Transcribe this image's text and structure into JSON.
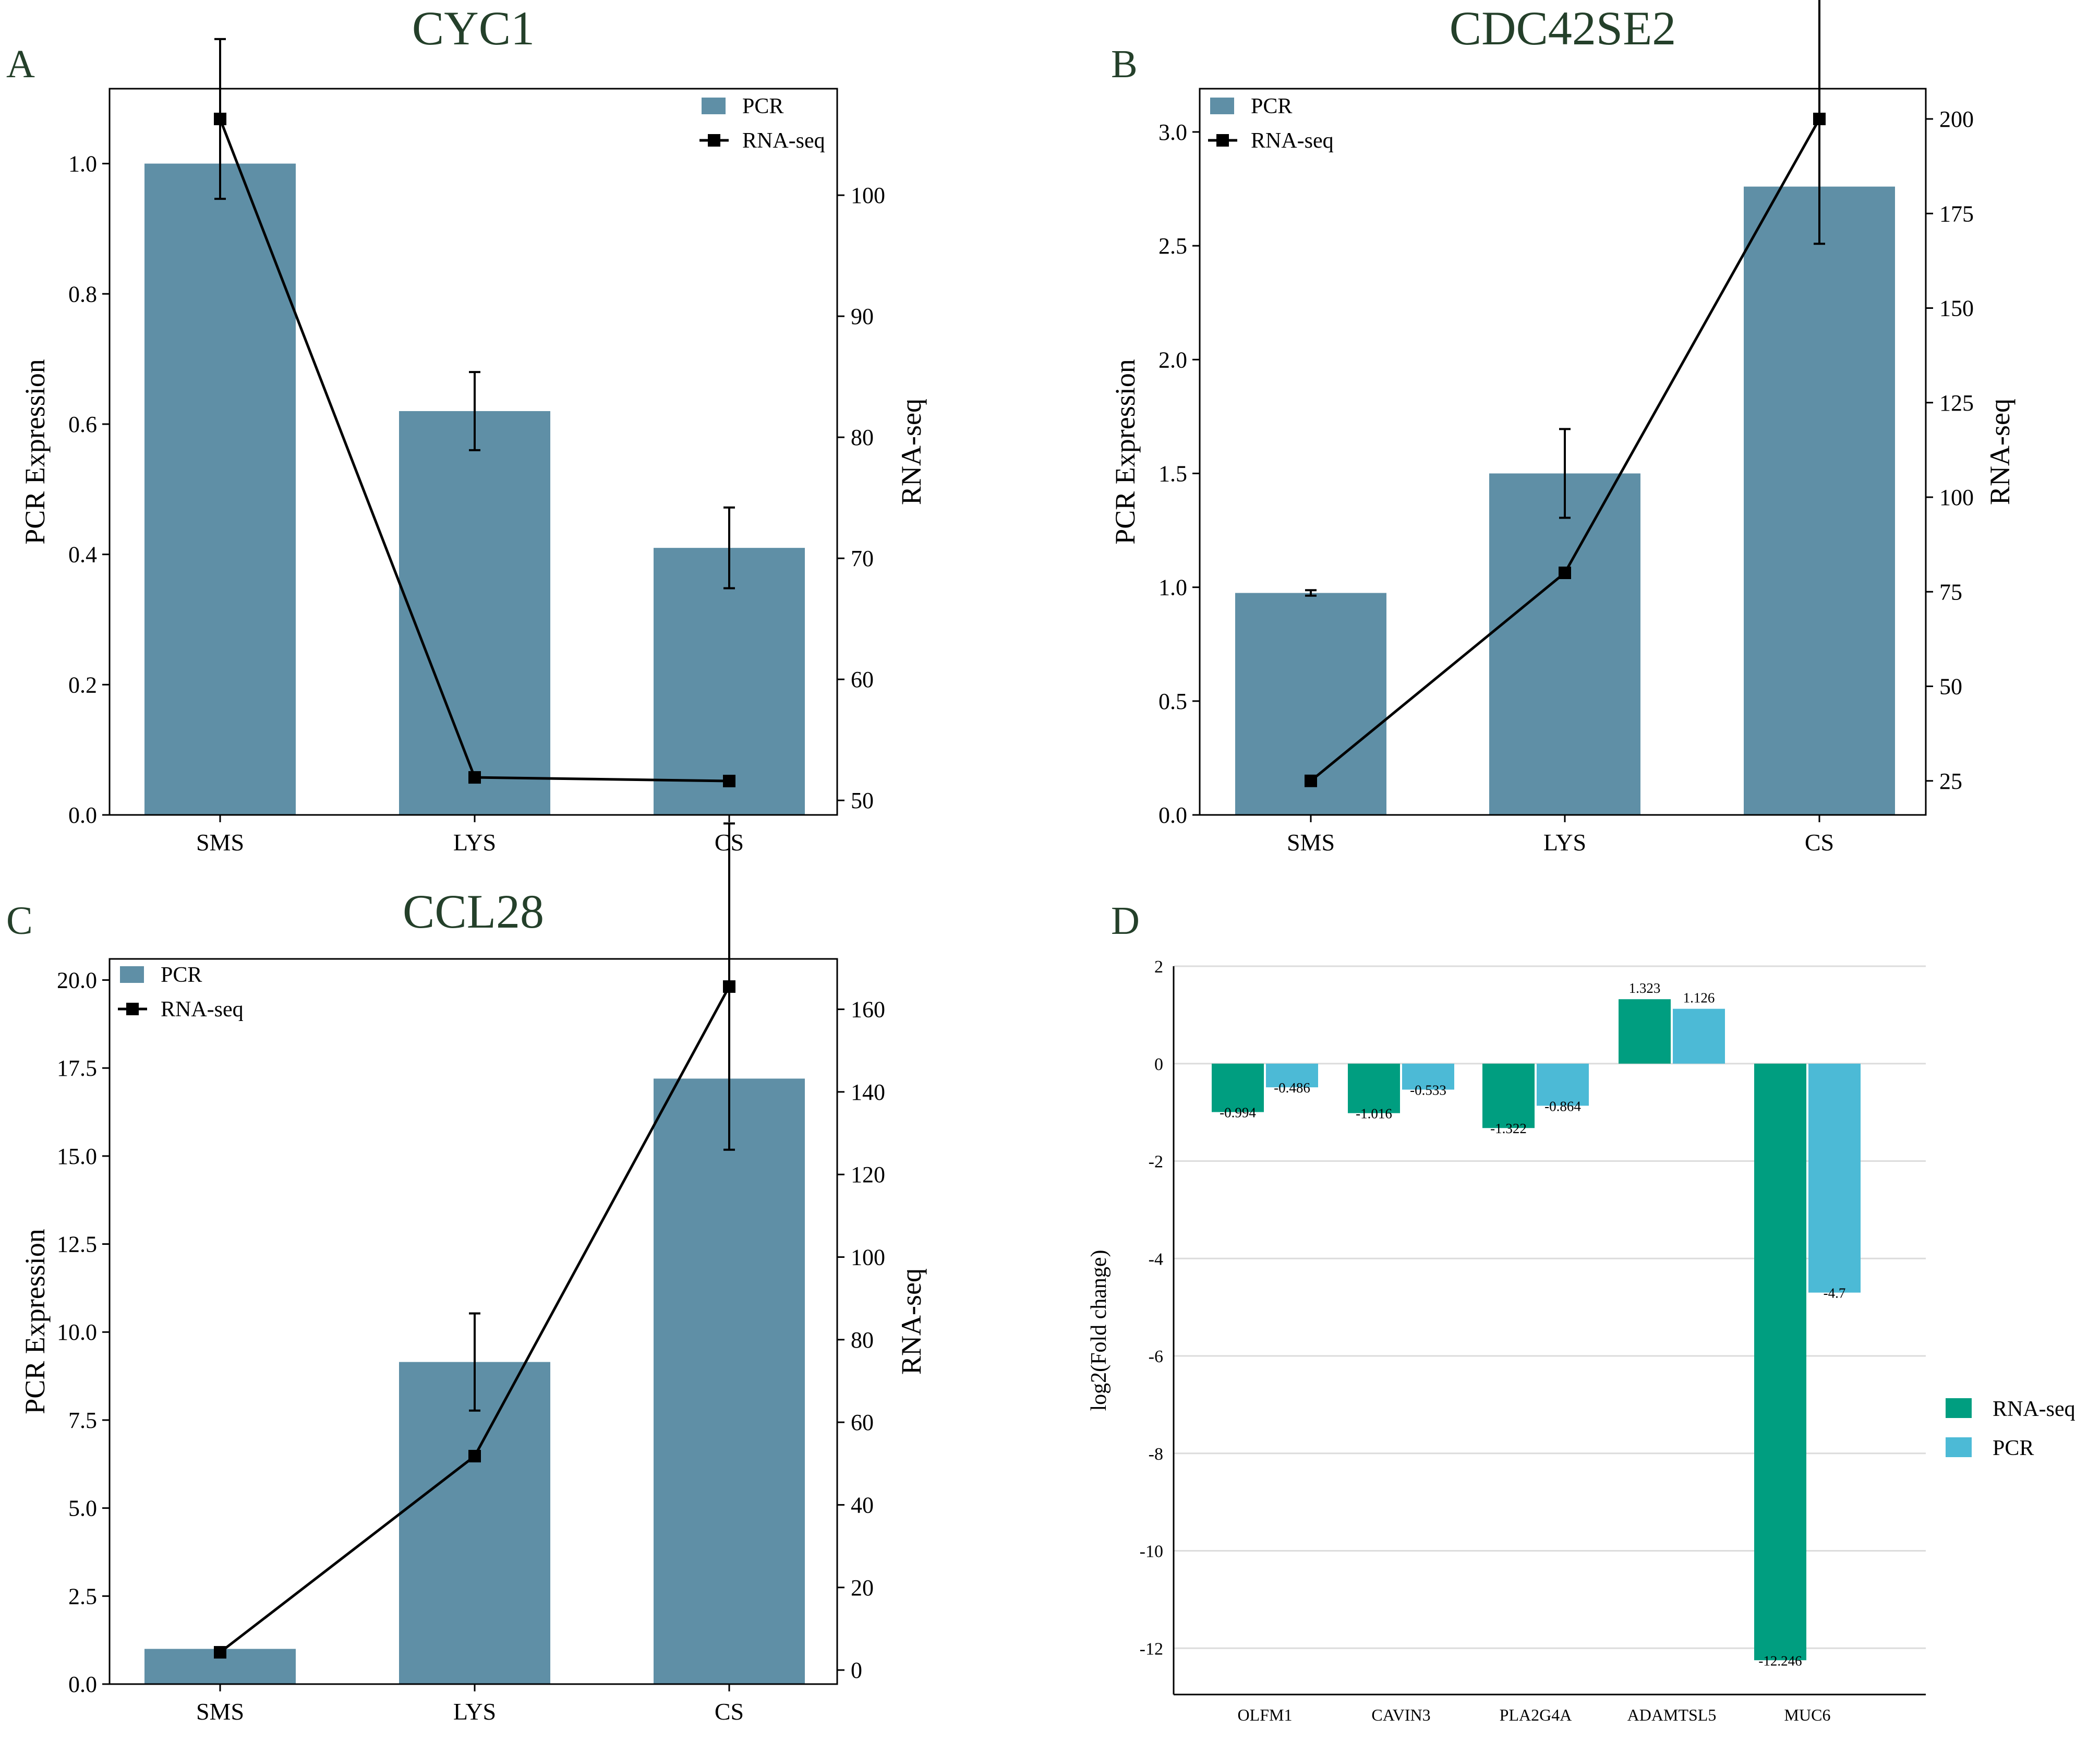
{
  "figure": {
    "panels": [
      "A",
      "B",
      "C",
      "D"
    ]
  },
  "chart_data": [
    {
      "panel": "A",
      "type": "bar",
      "title": "CYC1",
      "categories": [
        "SMS",
        "LYS",
        "CS"
      ],
      "ylabel": "PCR Expression",
      "y2label": "RNA-seq",
      "ylim": [
        0,
        1.115
      ],
      "yticks": [
        "0.0",
        "0.2",
        "0.4",
        "0.6",
        "0.8",
        "1.0"
      ],
      "y2lim": [
        48.8,
        108.8
      ],
      "y2ticks": [
        "50",
        "60",
        "70",
        "80",
        "90",
        "100"
      ],
      "legend_position": "top-right",
      "colors": {
        "bar": "#5f8fa6",
        "line": "#000000"
      },
      "series": [
        {
          "name": "PCR",
          "kind": "bar",
          "axis": "left",
          "values": [
            1.0,
            0.62,
            0.41
          ],
          "errors": [
            0,
            0.06,
            0.062
          ]
        },
        {
          "name": "RNA-seq",
          "kind": "line",
          "axis": "right",
          "values": [
            106.3,
            51.9,
            51.6
          ],
          "errors": [
            6.6,
            0,
            0
          ]
        }
      ]
    },
    {
      "panel": "B",
      "type": "bar",
      "title": "CDC42SE2",
      "categories": [
        "SMS",
        "LYS",
        "CS"
      ],
      "ylabel": "PCR Expression",
      "y2label": "RNA-seq",
      "ylim": [
        0,
        3.19
      ],
      "yticks": [
        "0.0",
        "0.5",
        "1.0",
        "1.5",
        "2.0",
        "2.5",
        "3.0"
      ],
      "y2lim": [
        16,
        208
      ],
      "y2ticks": [
        "25",
        "50",
        "75",
        "100",
        "125",
        "150",
        "175",
        "200"
      ],
      "legend_position": "top-left",
      "colors": {
        "bar": "#5f8fa6",
        "line": "#000000"
      },
      "series": [
        {
          "name": "PCR",
          "kind": "bar",
          "axis": "left",
          "values": [
            0.975,
            1.5,
            2.76
          ],
          "errors": [
            0.012,
            0.195,
            0
          ]
        },
        {
          "name": "RNA-seq",
          "kind": "line",
          "axis": "right",
          "values": [
            25,
            80,
            200
          ],
          "errors": [
            0,
            0,
            33
          ]
        }
      ]
    },
    {
      "panel": "C",
      "type": "bar",
      "title": "CCL28",
      "categories": [
        "SMS",
        "LYS",
        "CS"
      ],
      "ylabel": "PCR Expression",
      "y2label": "RNA-seq",
      "ylim": [
        0,
        20.6
      ],
      "yticks": [
        "0.0",
        "2.5",
        "5.0",
        "7.5",
        "10.0",
        "12.5",
        "15.0",
        "17.5",
        "20.0"
      ],
      "y2lim": [
        -3.4,
        172.2
      ],
      "y2ticks": [
        "0",
        "20",
        "40",
        "60",
        "80",
        "100",
        "120",
        "140",
        "160"
      ],
      "legend_position": "top-left",
      "colors": {
        "bar": "#5f8fa6",
        "line": "#000000"
      },
      "series": [
        {
          "name": "PCR",
          "kind": "bar",
          "axis": "left",
          "values": [
            1.0,
            9.15,
            17.2
          ],
          "errors": [
            0,
            1.38,
            0
          ]
        },
        {
          "name": "RNA-seq",
          "kind": "line",
          "axis": "right",
          "values": [
            4.3,
            51.8,
            165.5
          ],
          "errors": [
            1.0,
            0,
            39.5
          ]
        }
      ]
    },
    {
      "panel": "D",
      "type": "bar",
      "title": "",
      "categories": [
        "OLFM1",
        "CAVIN3",
        "PLA2G4A",
        "ADAMTSL5",
        "MUC6"
      ],
      "ylabel": "log2(Fold change)",
      "xlabel": "",
      "ylim": [
        -12.95,
        2
      ],
      "yticks": [
        "2",
        "0",
        "-2",
        "-4",
        "-6",
        "-8",
        "-10",
        "-12"
      ],
      "grid": true,
      "legend_position": "right",
      "colors": {
        "rna": "#009e80",
        "pcr": "#4cbad6"
      },
      "series": [
        {
          "name": "RNA-seq",
          "values": [
            -0.994,
            -1.016,
            -1.322,
            1.323,
            -12.246
          ],
          "labels": [
            "-0.994",
            "-1.016",
            "-1.322",
            "1.323",
            "-12.246"
          ]
        },
        {
          "name": "PCR",
          "values": [
            -0.486,
            -0.533,
            -0.864,
            1.126,
            -4.7
          ],
          "labels": [
            "-0.486",
            "-0.533",
            "-0.864",
            "1.126",
            "-4.7"
          ]
        }
      ]
    }
  ]
}
